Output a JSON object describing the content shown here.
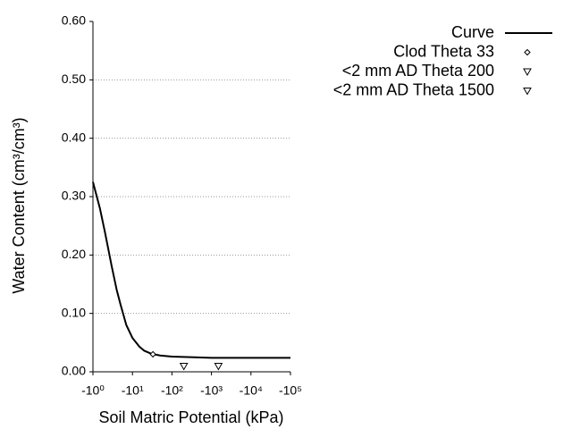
{
  "chart_data": {
    "type": "line",
    "x_label": "Soil Matric Potential (kPa)",
    "y_label": "Water Content (cm³/cm³)",
    "xscale": "log",
    "xlim": [
      1,
      100000
    ],
    "xticks": [
      {
        "value": 1,
        "label": "-10⁰"
      },
      {
        "value": 10,
        "label": "-10¹"
      },
      {
        "value": 100,
        "label": "-10²"
      },
      {
        "value": 1000,
        "label": "-10³"
      },
      {
        "value": 10000,
        "label": "-10⁴"
      },
      {
        "value": 100000,
        "label": "-10⁵"
      }
    ],
    "ylim": [
      0,
      0.6
    ],
    "yticks": [
      {
        "value": 0,
        "label": "0.00"
      },
      {
        "value": 0.1,
        "label": "0.10"
      },
      {
        "value": 0.2,
        "label": "0.20"
      },
      {
        "value": 0.3,
        "label": "0.30"
      },
      {
        "value": 0.4,
        "label": "0.40"
      },
      {
        "value": 0.5,
        "label": "0.50"
      },
      {
        "value": 0.6,
        "label": "0.60"
      }
    ],
    "grid": true,
    "legend": "top-right",
    "series": [
      {
        "name": "Curve",
        "color": "#000000",
        "marker": "none",
        "x": [
          1,
          1.5,
          2,
          3,
          4,
          5,
          7,
          10,
          15,
          20,
          30,
          50,
          100,
          300,
          1000,
          10000,
          100000
        ],
        "values": [
          0.325,
          0.28,
          0.24,
          0.18,
          0.14,
          0.115,
          0.08,
          0.058,
          0.043,
          0.036,
          0.031,
          0.028,
          0.026,
          0.025,
          0.024,
          0.024,
          0.024
        ]
      },
      {
        "name": "Clod Theta 33",
        "color": "#000000",
        "marker": "diamond",
        "x": [
          33
        ],
        "values": [
          0.03
        ]
      },
      {
        "name": "<2 mm AD Theta 200",
        "color": "#000000",
        "marker": "triangle-down",
        "x": [
          200
        ],
        "values": [
          0.01
        ]
      },
      {
        "name": "<2 mm AD Theta 1500",
        "color": "#000000",
        "marker": "triangle-down",
        "x": [
          1500
        ],
        "values": [
          0.01
        ]
      }
    ]
  }
}
